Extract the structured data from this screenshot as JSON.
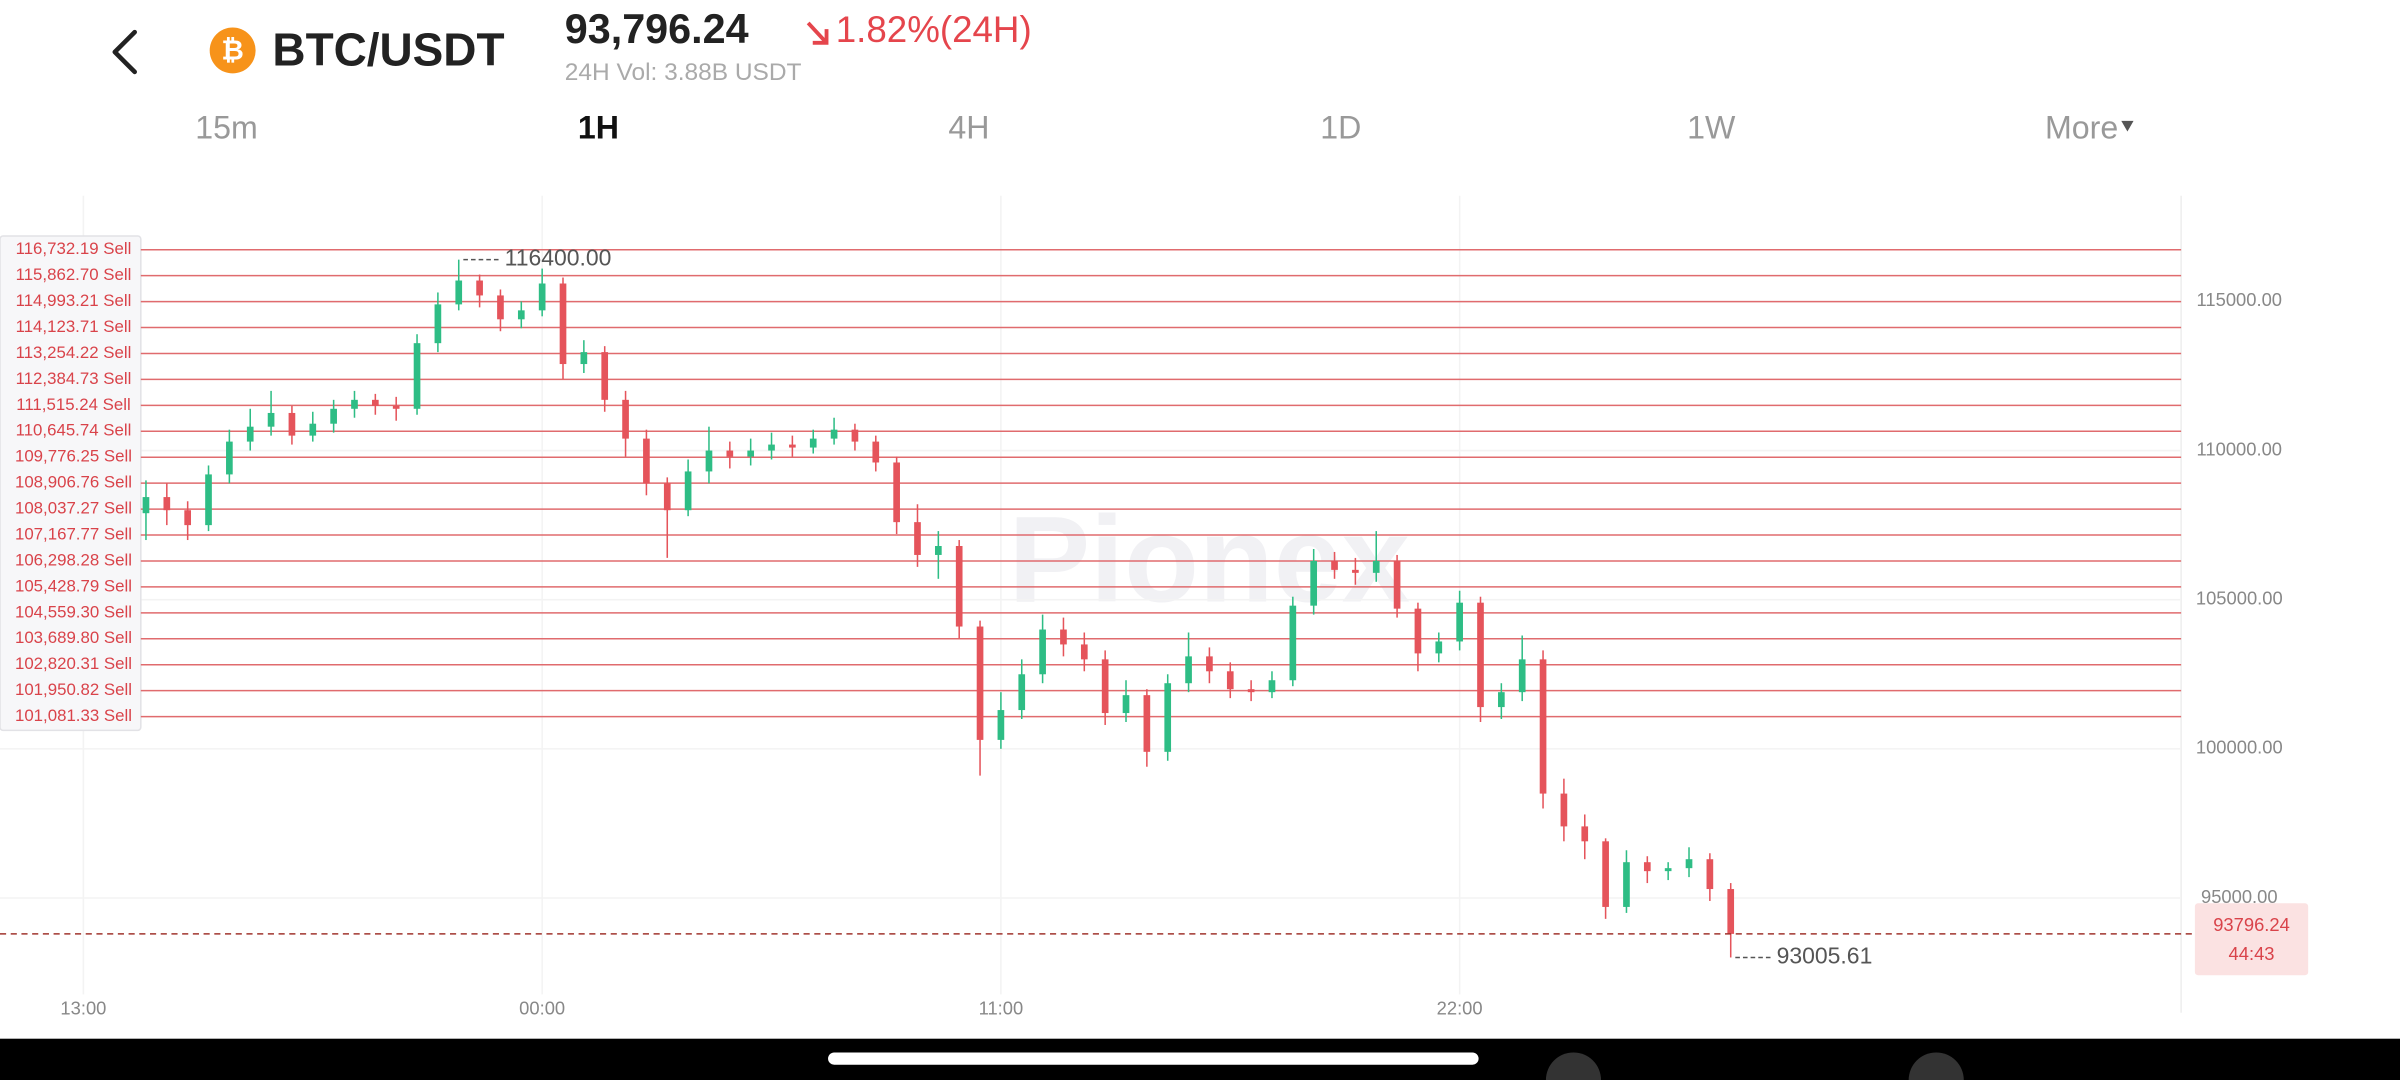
{
  "header": {
    "coin_symbol": "₿",
    "title": "BTC/USDT",
    "price": "93,796.24",
    "change": "1.82%(24H)",
    "volume": "24H Vol: 3.88B USDT"
  },
  "tabs": [
    "15m",
    "1H",
    "4H",
    "1D",
    "1W",
    "More"
  ],
  "active_tab": "1H",
  "watermark": "Pionex",
  "chart_data": {
    "type": "candlestick",
    "up_color": "#2ebd85",
    "down_color": "#e5545b",
    "x": [
      1.5,
      2,
      2.5,
      3,
      3.5,
      4,
      4.5,
      5,
      5.5,
      6,
      6.5,
      7,
      7.5,
      8,
      8.5,
      9,
      9.5,
      10,
      10.5,
      11,
      11.5,
      12,
      12.5,
      13,
      13.5,
      14,
      14.5,
      15,
      15.5,
      16,
      16.5,
      17,
      17.5,
      18,
      18.5,
      19,
      19.5,
      20,
      20.5,
      21,
      21.5,
      22,
      22.5,
      23,
      23.5,
      24,
      24.5,
      25,
      25.5,
      26,
      26.5,
      27,
      27.5,
      28,
      28.5,
      29,
      29.5,
      30,
      30.5,
      31,
      31.5,
      32,
      32.5,
      33,
      33.5,
      34,
      34.5,
      35,
      35.5,
      36,
      36.5,
      37,
      37.5,
      38,
      38.5,
      39,
      39.5
    ],
    "open": [
      107900,
      108440,
      108000,
      107500,
      109200,
      110300,
      110800,
      111260,
      110500,
      110900,
      111400,
      111700,
      111500,
      111400,
      113600,
      114900,
      115700,
      115200,
      114400,
      114700,
      115600,
      112900,
      113300,
      111700,
      110400,
      108900,
      108000,
      109300,
      110000,
      109800,
      110000,
      110200,
      110100,
      110400,
      110700,
      110300,
      109600,
      107600,
      106500,
      106800,
      104100,
      100300,
      101300,
      102500,
      104000,
      103500,
      103000,
      101200,
      101800,
      99900,
      102200,
      103100,
      102600,
      102000,
      101900,
      102300,
      104800,
      106300,
      106000,
      105900,
      106300,
      104700,
      103200,
      103600,
      104900,
      101400,
      101900,
      103000,
      98500,
      97400,
      96900,
      94700,
      96200,
      95900,
      96000,
      96300,
      95300
    ],
    "high": [
      109000,
      108900,
      108300,
      109500,
      110700,
      111400,
      112000,
      111500,
      111300,
      111700,
      112000,
      111900,
      111800,
      113900,
      115300,
      116400,
      115900,
      115400,
      115000,
      116100,
      115800,
      113700,
      113500,
      112000,
      110700,
      109100,
      109700,
      110800,
      110300,
      110400,
      110600,
      110500,
      110700,
      111100,
      110900,
      110500,
      109800,
      108200,
      107300,
      107000,
      104300,
      101900,
      103000,
      104500,
      104400,
      103900,
      103300,
      102300,
      102000,
      102500,
      103900,
      103400,
      102900,
      102300,
      102600,
      105100,
      106700,
      106600,
      106400,
      107300,
      106500,
      104900,
      103900,
      105300,
      105100,
      102200,
      103800,
      103300,
      99000,
      97800,
      97000,
      96600,
      96400,
      96200,
      96700,
      96500,
      95500
    ],
    "low": [
      107000,
      107500,
      107000,
      107300,
      108900,
      110000,
      110500,
      110200,
      110300,
      110600,
      111100,
      111200,
      111000,
      111200,
      113300,
      114700,
      114800,
      114000,
      114100,
      114500,
      112400,
      112600,
      111300,
      109800,
      108500,
      106400,
      107800,
      108900,
      109400,
      109500,
      109700,
      109800,
      109900,
      110200,
      110000,
      109300,
      107200,
      106100,
      105700,
      103700,
      99100,
      100000,
      101000,
      102200,
      103100,
      102600,
      100800,
      100900,
      99400,
      99600,
      101900,
      102200,
      101700,
      101600,
      101700,
      102100,
      104500,
      105700,
      105500,
      105600,
      104400,
      102600,
      102900,
      103300,
      100900,
      101000,
      101600,
      98000,
      96900,
      96300,
      94300,
      94500,
      95500,
      95600,
      95700,
      94900,
      93005.61
    ],
    "close": [
      108440,
      108000,
      107500,
      109200,
      110300,
      110800,
      111260,
      110500,
      110900,
      111400,
      111700,
      111500,
      111400,
      113600,
      114900,
      115700,
      115200,
      114400,
      114700,
      115600,
      112900,
      113300,
      111700,
      110400,
      108900,
      108000,
      109300,
      110000,
      109800,
      110000,
      110200,
      110100,
      110400,
      110700,
      110300,
      109600,
      107600,
      106500,
      106800,
      104100,
      100300,
      101300,
      102500,
      104000,
      103500,
      103000,
      101200,
      101800,
      99900,
      102200,
      103100,
      102600,
      102000,
      101900,
      102300,
      104800,
      106300,
      106000,
      105900,
      106300,
      104700,
      103200,
      103600,
      104900,
      101400,
      101900,
      103000,
      98500,
      97400,
      96900,
      94700,
      96200,
      95900,
      96000,
      96300,
      95300,
      93796.24
    ],
    "xlim": [
      -2,
      50.3
    ],
    "ylim": [
      91770,
      118540
    ],
    "xticks": [
      {
        "value": 0,
        "label": "13:00"
      },
      {
        "value": 11,
        "label": "00:00"
      },
      {
        "value": 22,
        "label": "11:00"
      },
      {
        "value": 33,
        "label": "22:00"
      }
    ],
    "yticks": [
      {
        "value": 95000,
        "label": "95000.00"
      },
      {
        "value": 100000,
        "label": "100000.00"
      },
      {
        "value": 105000,
        "label": "105000.00"
      },
      {
        "value": 110000,
        "label": "110000.00"
      },
      {
        "value": 115000,
        "label": "115000.00"
      }
    ],
    "grid": true,
    "sell_orders": [
      {
        "value": 116732.19,
        "label": "116,732.19 Sell"
      },
      {
        "value": 115862.7,
        "label": "115,862.70 Sell"
      },
      {
        "value": 114993.21,
        "label": "114,993.21 Sell"
      },
      {
        "value": 114123.71,
        "label": "114,123.71 Sell"
      },
      {
        "value": 113254.22,
        "label": "113,254.22 Sell"
      },
      {
        "value": 112384.73,
        "label": "112,384.73 Sell"
      },
      {
        "value": 111515.24,
        "label": "111,515.24 Sell"
      },
      {
        "value": 110645.74,
        "label": "110,645.74 Sell"
      },
      {
        "value": 109776.25,
        "label": "109,776.25 Sell"
      },
      {
        "value": 108906.76,
        "label": "108,906.76 Sell"
      },
      {
        "value": 108037.27,
        "label": "108,037.27 Sell"
      },
      {
        "value": 107167.77,
        "label": "107,167.77 Sell"
      },
      {
        "value": 106298.28,
        "label": "106,298.28 Sell"
      },
      {
        "value": 105428.79,
        "label": "105,428.79 Sell"
      },
      {
        "value": 104559.3,
        "label": "104,559.30 Sell"
      },
      {
        "value": 103689.8,
        "label": "103,689.80 Sell"
      },
      {
        "value": 102820.31,
        "label": "102,820.31 Sell"
      },
      {
        "value": 101950.82,
        "label": "101,950.82 Sell"
      },
      {
        "value": 101081.33,
        "label": "101,081.33 Sell"
      }
    ],
    "high_marker": {
      "value": 116400,
      "label": "116400.00"
    },
    "low_marker": {
      "value": 93005.61,
      "label": "93005.61"
    },
    "current_price": {
      "value": 93796.24,
      "label": "93796.24"
    },
    "countdown": "44:43"
  }
}
